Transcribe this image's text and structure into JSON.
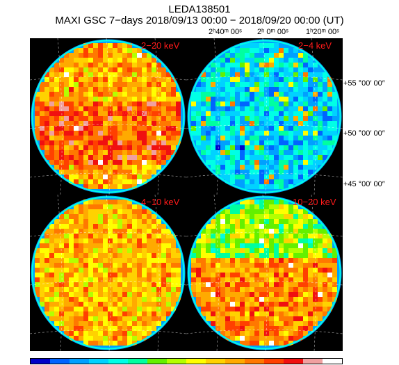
{
  "title": "LEDA138501",
  "subtitle": "MAXI GSC 7−days 2018/09/13 00:00 − 2018/09/20 00:00 (UT)",
  "ra_labels": [
    {
      "text": "2ʰ40ᵐ 00ˢ"
    },
    {
      "text": "2ʰ 0ᵐ 00ˢ"
    },
    {
      "text": "1ʰ20ᵐ 00ˢ"
    }
  ],
  "dec_labels": [
    {
      "text": "+55 °00′ 00″"
    },
    {
      "text": "+50 °00′ 00″"
    },
    {
      "text": "+45 °00′ 00″"
    }
  ],
  "panels": [
    {
      "band": "2−20 keV",
      "scheme": "hot",
      "source_label": "LEDA138501"
    },
    {
      "band": "2−4 keV",
      "scheme": "cold",
      "source_label": ""
    },
    {
      "band": "4−10 keV",
      "scheme": "warm",
      "source_label": ""
    },
    {
      "band": "10−20 keV",
      "scheme": "split",
      "source_label": ""
    }
  ],
  "colorbar": [
    "#0000c8",
    "#0064ff",
    "#00a0ff",
    "#00d2ff",
    "#00ffe6",
    "#00ffa0",
    "#64f000",
    "#b4ff00",
    "#ffff00",
    "#ffd200",
    "#ffaa00",
    "#ff7800",
    "#ff4000",
    "#f01010",
    "#f0a0a0",
    "#ffffff"
  ]
}
